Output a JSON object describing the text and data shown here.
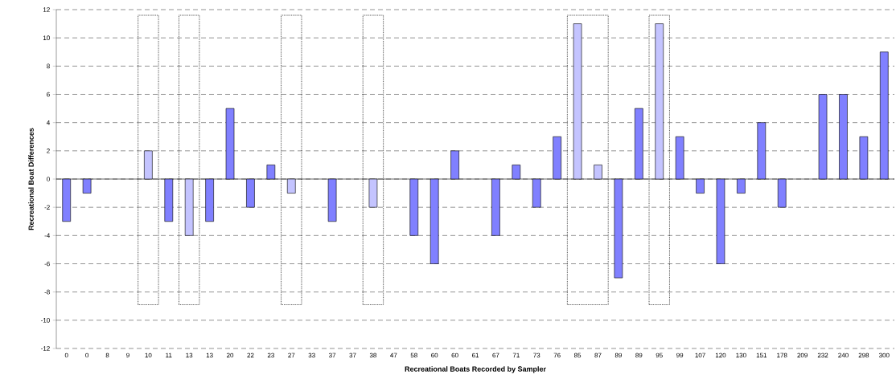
{
  "chart_data": {
    "type": "bar",
    "xlabel": "Recreational Boats Recorded by Sampler",
    "ylabel": "Recreational Boat Differences",
    "categories": [
      "0",
      "0",
      "8",
      "9",
      "10",
      "11",
      "13",
      "13",
      "20",
      "22",
      "23",
      "27",
      "33",
      "37",
      "37",
      "38",
      "47",
      "58",
      "60",
      "60",
      "61",
      "67",
      "71",
      "73",
      "76",
      "85",
      "87",
      "89",
      "89",
      "95",
      "99",
      "107",
      "120",
      "130",
      "151",
      "178",
      "209",
      "232",
      "240",
      "298",
      "300"
    ],
    "series": [
      {
        "color": "#8080ff",
        "values": [
          -3,
          -1,
          null,
          null,
          null,
          -3,
          null,
          -3,
          5,
          -2,
          1,
          null,
          null,
          -3,
          null,
          null,
          null,
          -4,
          -6,
          2,
          null,
          -4,
          1,
          -2,
          3,
          null,
          null,
          -7,
          5,
          null,
          3,
          -1,
          -6,
          -1,
          4,
          -2,
          null,
          6,
          6,
          3,
          9
        ]
      },
      {
        "color": "#c4c4ff",
        "values": [
          null,
          null,
          null,
          null,
          2,
          null,
          -4,
          null,
          null,
          null,
          null,
          -1,
          null,
          null,
          null,
          -2,
          null,
          null,
          null,
          null,
          null,
          null,
          null,
          null,
          null,
          11,
          1,
          null,
          null,
          11,
          null,
          null,
          null,
          null,
          null,
          null,
          null,
          null,
          null,
          null,
          null
        ]
      }
    ],
    "ylim": [
      -12,
      12
    ],
    "yticks": [
      -12,
      -10,
      -8,
      -6,
      -4,
      -2,
      0,
      2,
      4,
      6,
      8,
      10,
      12
    ],
    "grid": "y"
  }
}
